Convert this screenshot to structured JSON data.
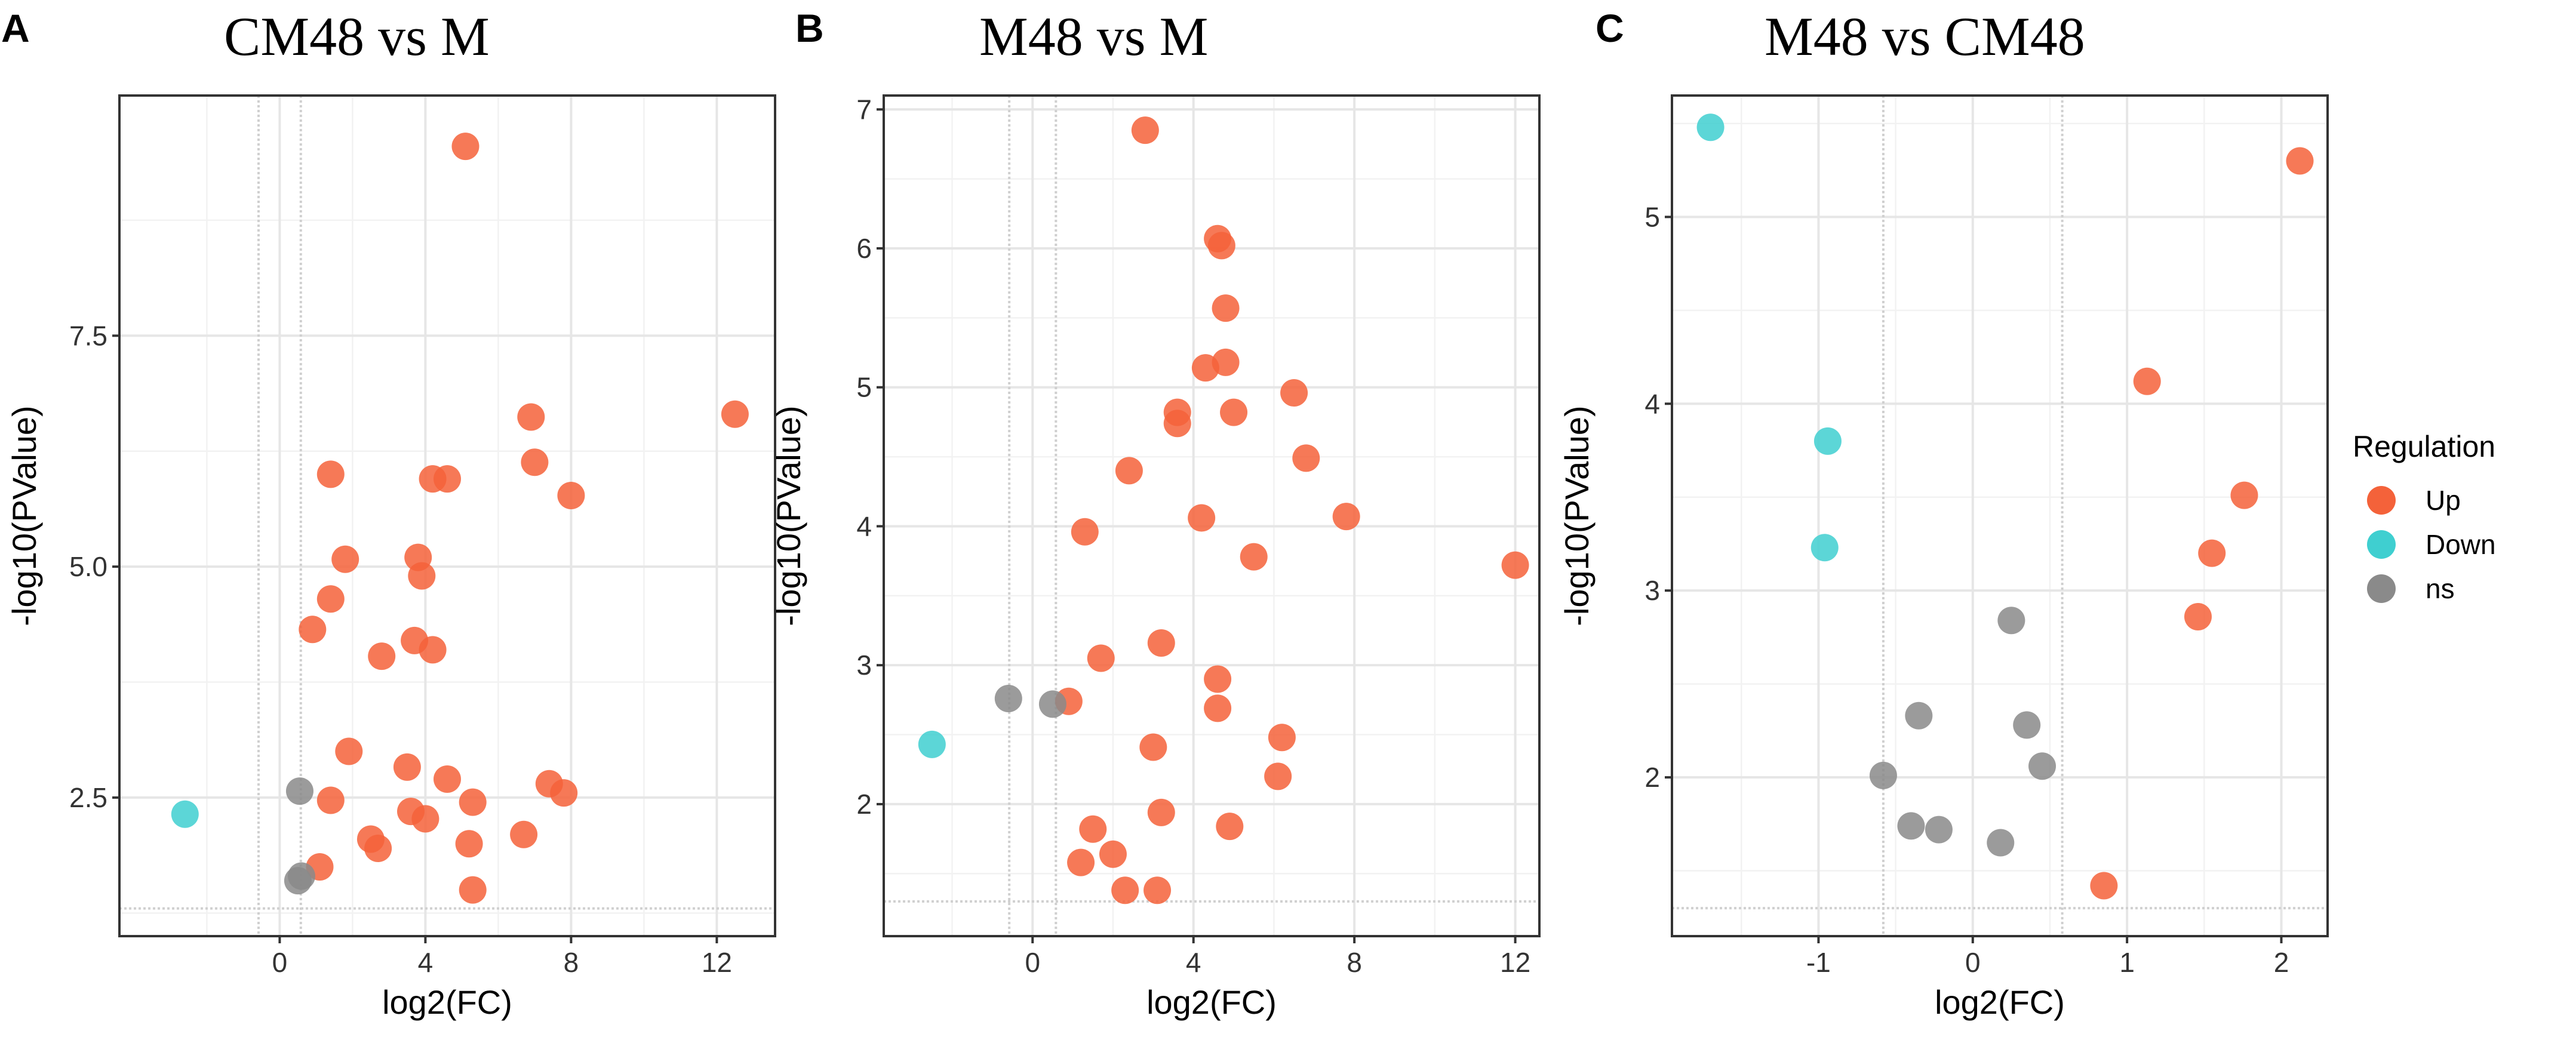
{
  "legend": {
    "title": "Regulation",
    "entries": [
      {
        "label": "Up",
        "color": "#f4623a"
      },
      {
        "label": "Down",
        "color": "#3fcfd0"
      },
      {
        "label": "ns",
        "color": "#8a8a8a"
      }
    ]
  },
  "chart_data": [
    {
      "panel": "A",
      "title": "CM48 vs M",
      "type": "scatter",
      "xlabel": "log2(FC)",
      "ylabel": "-log10(PValue)",
      "xlim": [
        -4.4,
        13.6
      ],
      "ylim": [
        1.0,
        10.1
      ],
      "xticks": [
        {
          "v": 0,
          "label": "0"
        },
        {
          "v": 4,
          "label": "4"
        },
        {
          "v": 8,
          "label": "8"
        },
        {
          "v": 12,
          "label": "12"
        }
      ],
      "yticks": [
        {
          "v": 2.5,
          "label": "2.5"
        },
        {
          "v": 5.0,
          "label": "5.0"
        },
        {
          "v": 7.5,
          "label": "7.5"
        }
      ],
      "thresholds": {
        "x": [
          -0.58,
          0.58
        ],
        "y": [
          1.3
        ]
      },
      "series": [
        {
          "name": "Up",
          "points": [
            [
              5.1,
              9.55
            ],
            [
              12.5,
              6.65
            ],
            [
              6.9,
              6.62
            ],
            [
              7.0,
              6.13
            ],
            [
              8.0,
              5.77
            ],
            [
              4.2,
              5.95
            ],
            [
              4.6,
              5.95
            ],
            [
              1.4,
              6.0
            ],
            [
              1.8,
              5.08
            ],
            [
              3.8,
              5.1
            ],
            [
              3.9,
              4.9
            ],
            [
              1.4,
              4.65
            ],
            [
              0.9,
              4.32
            ],
            [
              3.7,
              4.2
            ],
            [
              4.2,
              4.1
            ],
            [
              2.8,
              4.03
            ],
            [
              1.9,
              3.0
            ],
            [
              3.5,
              2.83
            ],
            [
              4.6,
              2.7
            ],
            [
              7.4,
              2.65
            ],
            [
              7.8,
              2.55
            ],
            [
              1.4,
              2.47
            ],
            [
              5.3,
              2.45
            ],
            [
              3.6,
              2.35
            ],
            [
              4.0,
              2.27
            ],
            [
              6.7,
              2.1
            ],
            [
              2.5,
              2.05
            ],
            [
              2.7,
              1.95
            ],
            [
              5.2,
              2.0
            ],
            [
              1.1,
              1.75
            ],
            [
              5.3,
              1.5
            ]
          ]
        },
        {
          "name": "Down",
          "points": [
            [
              -2.6,
              2.32
            ]
          ]
        },
        {
          "name": "ns",
          "points": [
            [
              0.55,
              2.57
            ],
            [
              0.6,
              1.65
            ],
            [
              0.5,
              1.6
            ]
          ]
        }
      ]
    },
    {
      "panel": "B",
      "title": "M48 vs M",
      "type": "scatter",
      "xlabel": "log2(FC)",
      "ylabel": "-log10(PValue)",
      "xlim": [
        -3.7,
        12.6
      ],
      "ylim": [
        1.05,
        7.1
      ],
      "xticks": [
        {
          "v": 0,
          "label": "0"
        },
        {
          "v": 4,
          "label": "4"
        },
        {
          "v": 8,
          "label": "8"
        },
        {
          "v": 12,
          "label": "12"
        }
      ],
      "yticks": [
        {
          "v": 2,
          "label": "2"
        },
        {
          "v": 3,
          "label": "3"
        },
        {
          "v": 4,
          "label": "4"
        },
        {
          "v": 5,
          "label": "5"
        },
        {
          "v": 6,
          "label": "6"
        },
        {
          "v": 7,
          "label": "7"
        }
      ],
      "thresholds": {
        "x": [
          -0.58,
          0.58
        ],
        "y": [
          1.3
        ]
      },
      "series": [
        {
          "name": "Up",
          "points": [
            [
              2.8,
              6.85
            ],
            [
              4.6,
              6.07
            ],
            [
              4.7,
              6.02
            ],
            [
              4.8,
              5.57
            ],
            [
              4.8,
              5.18
            ],
            [
              4.3,
              5.14
            ],
            [
              6.5,
              4.96
            ],
            [
              3.6,
              4.82
            ],
            [
              5.0,
              4.82
            ],
            [
              3.6,
              4.74
            ],
            [
              6.8,
              4.49
            ],
            [
              2.4,
              4.4
            ],
            [
              4.2,
              4.06
            ],
            [
              7.8,
              4.07
            ],
            [
              1.3,
              3.96
            ],
            [
              5.5,
              3.78
            ],
            [
              12.0,
              3.72
            ],
            [
              3.2,
              3.16
            ],
            [
              1.7,
              3.05
            ],
            [
              4.6,
              2.9
            ],
            [
              0.9,
              2.74
            ],
            [
              4.6,
              2.69
            ],
            [
              6.2,
              2.48
            ],
            [
              3.0,
              2.41
            ],
            [
              6.1,
              2.2
            ],
            [
              3.2,
              1.94
            ],
            [
              4.9,
              1.84
            ],
            [
              1.5,
              1.82
            ],
            [
              2.0,
              1.64
            ],
            [
              1.2,
              1.58
            ],
            [
              2.3,
              1.38
            ],
            [
              3.1,
              1.38
            ]
          ]
        },
        {
          "name": "Down",
          "points": [
            [
              -2.5,
              2.43
            ]
          ]
        },
        {
          "name": "ns",
          "points": [
            [
              -0.6,
              2.76
            ],
            [
              0.5,
              2.72
            ]
          ]
        }
      ]
    },
    {
      "panel": "C",
      "title": "M48 vs CM48",
      "type": "scatter",
      "xlabel": "log2(FC)",
      "ylabel": "-log10(PValue)",
      "xlim": [
        -1.95,
        2.3
      ],
      "ylim": [
        1.15,
        5.65
      ],
      "xticks": [
        {
          "v": -1,
          "label": "-1"
        },
        {
          "v": 0,
          "label": "0"
        },
        {
          "v": 1,
          "label": "1"
        },
        {
          "v": 2,
          "label": "2"
        }
      ],
      "yticks": [
        {
          "v": 2,
          "label": "2"
        },
        {
          "v": 3,
          "label": "3"
        },
        {
          "v": 4,
          "label": "4"
        },
        {
          "v": 5,
          "label": "5"
        }
      ],
      "thresholds": {
        "x": [
          -0.58,
          0.58
        ],
        "y": [
          1.3
        ]
      },
      "series": [
        {
          "name": "Up",
          "points": [
            [
              2.12,
              5.3
            ],
            [
              1.13,
              4.12
            ],
            [
              1.76,
              3.51
            ],
            [
              1.55,
              3.2
            ],
            [
              1.46,
              2.86
            ],
            [
              0.85,
              1.42
            ]
          ]
        },
        {
          "name": "Down",
          "points": [
            [
              -1.7,
              5.48
            ],
            [
              -0.94,
              3.8
            ],
            [
              -0.96,
              3.23
            ]
          ]
        },
        {
          "name": "ns",
          "points": [
            [
              0.25,
              2.84
            ],
            [
              -0.35,
              2.33
            ],
            [
              0.35,
              2.28
            ],
            [
              0.45,
              2.06
            ],
            [
              -0.58,
              2.01
            ],
            [
              -0.4,
              1.74
            ],
            [
              -0.22,
              1.72
            ],
            [
              0.18,
              1.65
            ]
          ]
        }
      ]
    }
  ]
}
